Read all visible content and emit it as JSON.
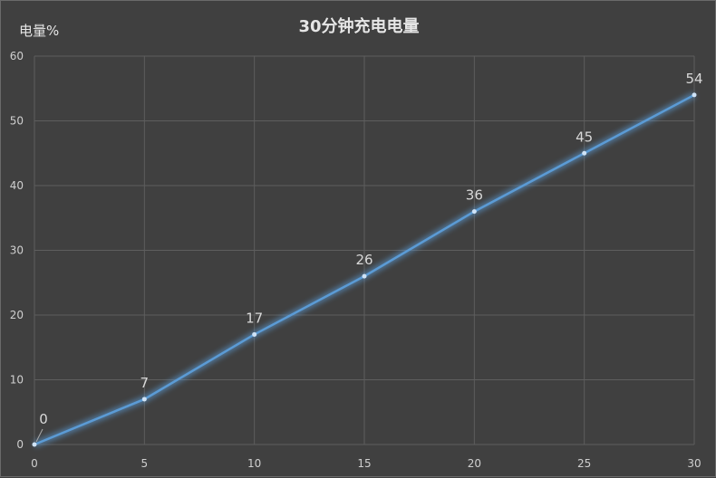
{
  "chart_data": {
    "type": "line",
    "title": "30分钟充电电量",
    "ylabel": "电量%",
    "xlabel": "",
    "x": [
      0,
      5,
      10,
      15,
      20,
      25,
      30
    ],
    "series": [
      {
        "values": [
          0,
          7,
          17,
          26,
          36,
          45,
          54
        ]
      }
    ],
    "xlim": [
      0,
      30
    ],
    "ylim": [
      0,
      60
    ],
    "xticks": [
      0,
      5,
      10,
      15,
      20,
      25,
      30
    ],
    "yticks": [
      0,
      10,
      20,
      30,
      40,
      50,
      60
    ],
    "grid": true,
    "data_labels": true,
    "colors": {
      "background": "#404040",
      "grid": "#5e5e5e",
      "line": "#5b9bd5",
      "text": "#d9d9d9"
    }
  }
}
